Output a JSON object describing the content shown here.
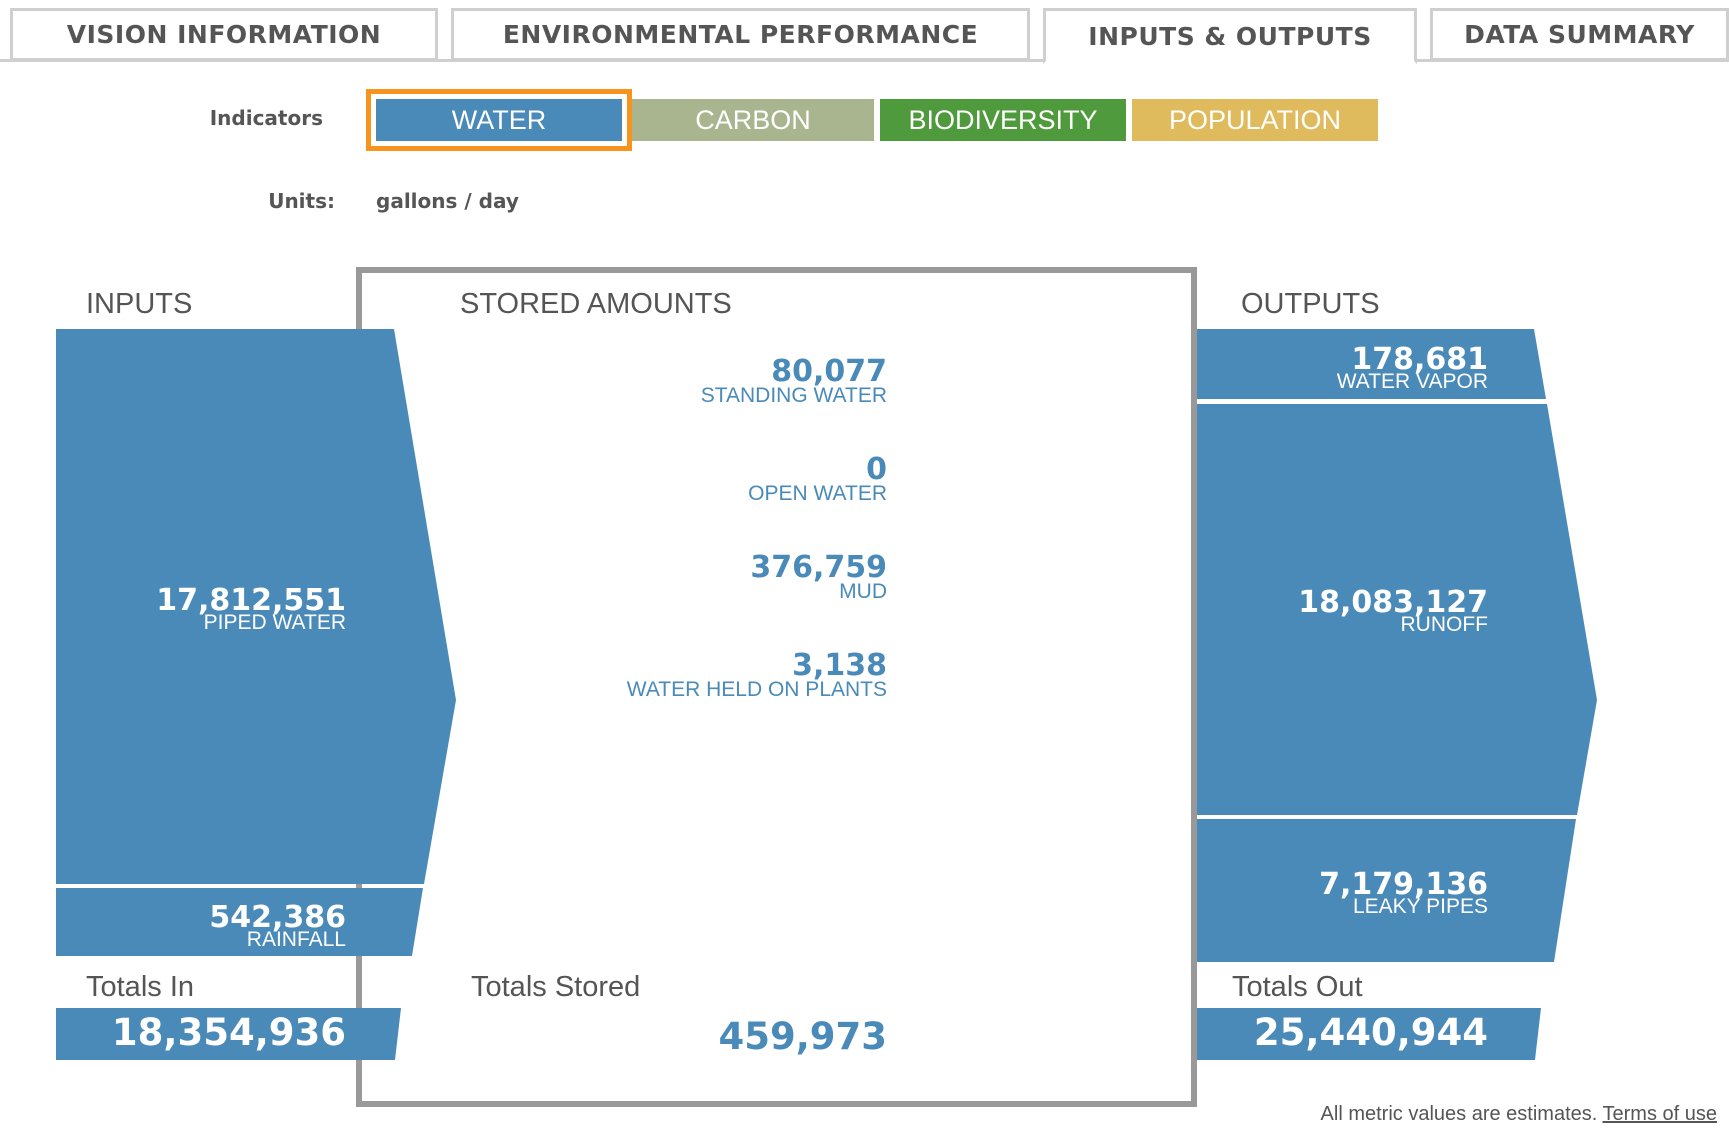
{
  "tabs": [
    {
      "label": "VISION INFORMATION"
    },
    {
      "label": "ENVIRONMENTAL PERFORMANCE"
    },
    {
      "label": "INPUTS & OUTPUTS"
    },
    {
      "label": "DATA SUMMARY"
    }
  ],
  "active_tab": "INPUTS & OUTPUTS",
  "indicators": {
    "label": "Indicators",
    "items": [
      {
        "label": "WATER",
        "color": "#4a8ab8",
        "selected": true
      },
      {
        "label": "CARBON",
        "color": "#a9b58e"
      },
      {
        "label": "BIODIVERSITY",
        "color": "#4f9a3c"
      },
      {
        "label": "POPULATION",
        "color": "#e0bb5e"
      }
    ],
    "selected_outline_color": "#f7941d"
  },
  "units": {
    "label": "Units:",
    "value": "gallons / day"
  },
  "inputs": {
    "heading": "INPUTS",
    "items": [
      {
        "value": "17,812,551",
        "name": "PIPED WATER"
      },
      {
        "value": "542,386",
        "name": "RAINFALL"
      }
    ],
    "total_label": "Totals In",
    "total": "18,354,936"
  },
  "stored": {
    "heading": "STORED AMOUNTS",
    "items": [
      {
        "value": "80,077",
        "name": "STANDING WATER"
      },
      {
        "value": "0",
        "name": "OPEN WATER"
      },
      {
        "value": "376,759",
        "name": "MUD"
      },
      {
        "value": "3,138",
        "name": "WATER HELD ON PLANTS"
      }
    ],
    "total_label": "Totals Stored",
    "total": "459,973"
  },
  "outputs": {
    "heading": "OUTPUTS",
    "items": [
      {
        "value": "178,681",
        "name": "WATER VAPOR"
      },
      {
        "value": "18,083,127",
        "name": "RUNOFF"
      },
      {
        "value": "7,179,136",
        "name": "LEAKY PIPES"
      }
    ],
    "total_label": "Totals Out",
    "total": "25,440,944"
  },
  "colors": {
    "flow": "#4a8ab8",
    "box_border": "#999999",
    "text": "#555555"
  },
  "footer": {
    "note": "All metric values are estimates.",
    "link": "Terms of use"
  }
}
